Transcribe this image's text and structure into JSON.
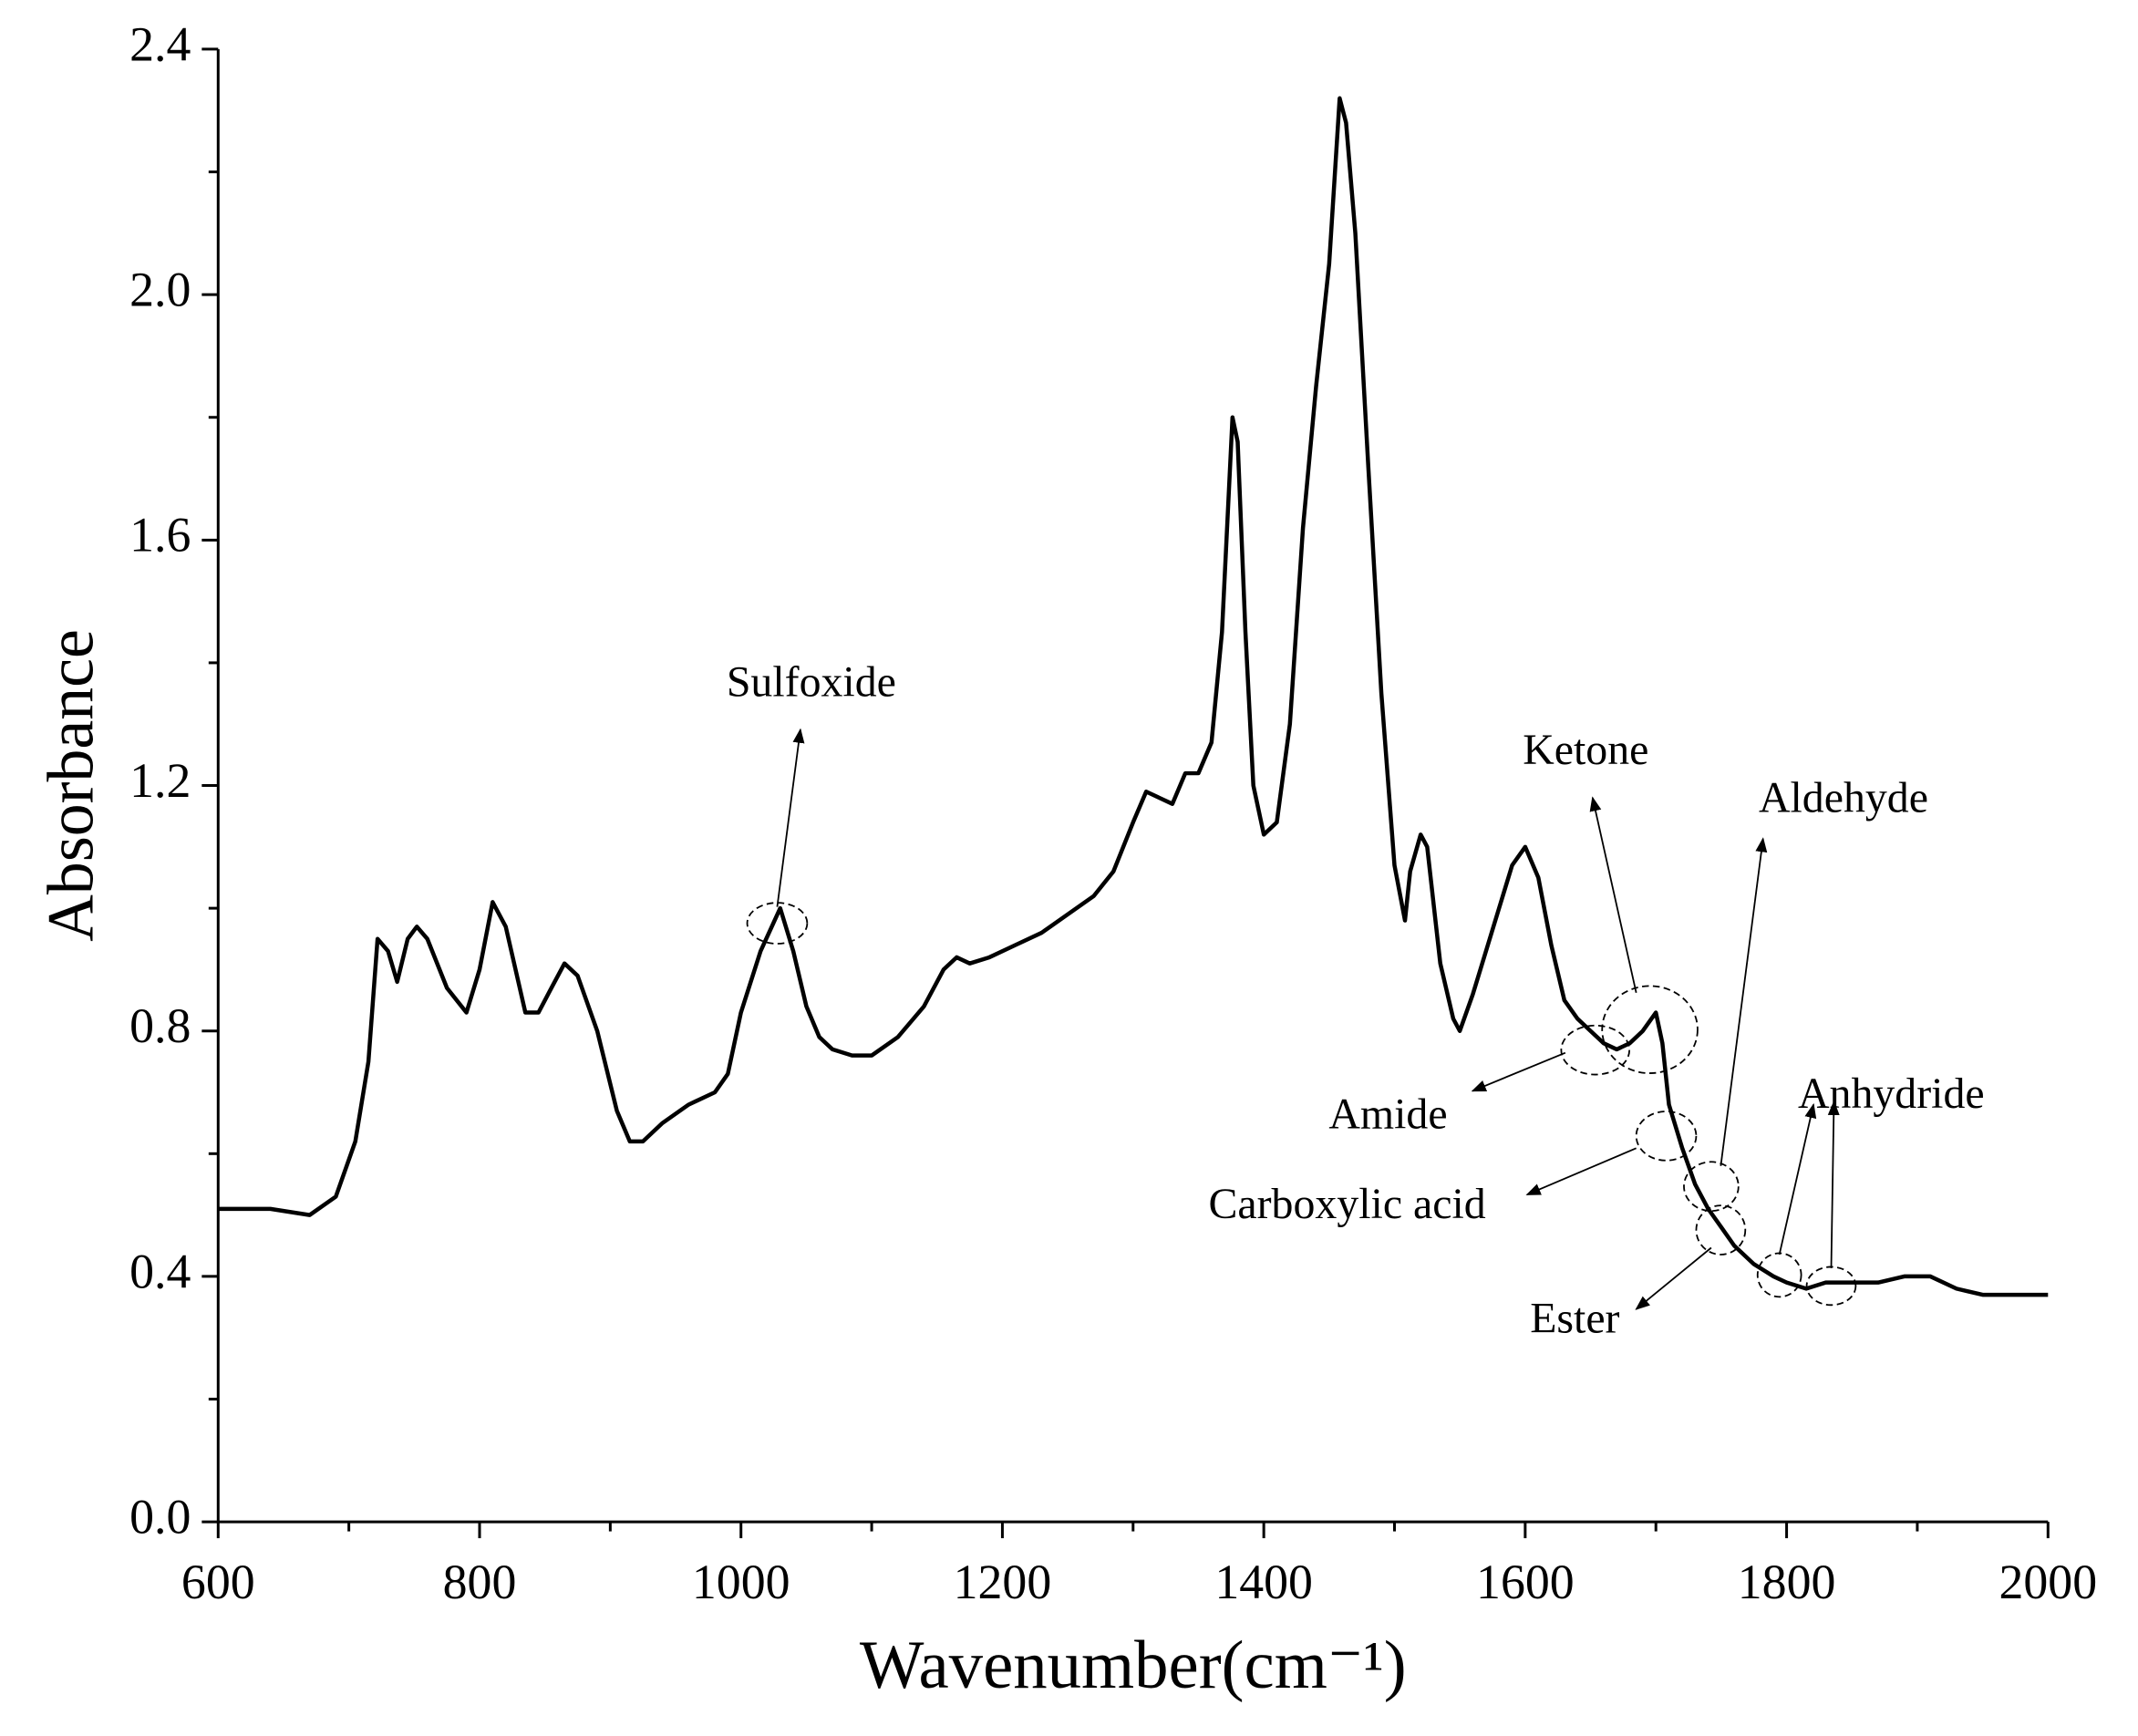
{
  "chart_data": {
    "type": "line",
    "xlabel": "Wavenumber(cm⁻¹)",
    "ylabel": "Absorbance",
    "color": "#000000",
    "x": [
      600,
      640,
      670,
      690,
      705,
      715,
      722,
      730,
      737,
      745,
      752,
      760,
      775,
      790,
      800,
      810,
      820,
      835,
      845,
      855,
      865,
      875,
      890,
      905,
      915,
      925,
      940,
      960,
      980,
      990,
      1000,
      1015,
      1030,
      1040,
      1050,
      1060,
      1070,
      1085,
      1100,
      1120,
      1140,
      1155,
      1165,
      1175,
      1190,
      1210,
      1230,
      1250,
      1270,
      1285,
      1300,
      1310,
      1320,
      1330,
      1340,
      1350,
      1360,
      1368,
      1376,
      1380,
      1386,
      1392,
      1400,
      1410,
      1420,
      1430,
      1440,
      1450,
      1458,
      1463,
      1470,
      1480,
      1490,
      1500,
      1508,
      1512,
      1520,
      1525,
      1535,
      1545,
      1550,
      1560,
      1570,
      1580,
      1590,
      1600,
      1610,
      1620,
      1630,
      1640,
      1650,
      1660,
      1670,
      1680,
      1690,
      1700,
      1705,
      1710,
      1720,
      1730,
      1740,
      1750,
      1760,
      1775,
      1790,
      1800,
      1815,
      1830,
      1850,
      1870,
      1890,
      1910,
      1930,
      1950,
      1970,
      1985,
      2000
    ],
    "values": [
      0.51,
      0.51,
      0.5,
      0.53,
      0.62,
      0.75,
      0.95,
      0.93,
      0.88,
      0.95,
      0.97,
      0.95,
      0.87,
      0.83,
      0.9,
      1.01,
      0.97,
      0.83,
      0.83,
      0.87,
      0.91,
      0.89,
      0.8,
      0.67,
      0.62,
      0.62,
      0.65,
      0.68,
      0.7,
      0.73,
      0.83,
      0.93,
      1.0,
      0.93,
      0.84,
      0.79,
      0.77,
      0.76,
      0.76,
      0.79,
      0.84,
      0.9,
      0.92,
      0.91,
      0.92,
      0.94,
      0.96,
      0.99,
      1.02,
      1.06,
      1.14,
      1.19,
      1.18,
      1.17,
      1.22,
      1.22,
      1.27,
      1.45,
      1.8,
      1.76,
      1.45,
      1.2,
      1.12,
      1.14,
      1.3,
      1.62,
      1.85,
      2.05,
      2.32,
      2.28,
      2.1,
      1.72,
      1.35,
      1.07,
      0.98,
      1.06,
      1.12,
      1.1,
      0.91,
      0.82,
      0.8,
      0.86,
      0.93,
      1.0,
      1.07,
      1.1,
      1.05,
      0.94,
      0.85,
      0.82,
      0.8,
      0.78,
      0.77,
      0.78,
      0.8,
      0.83,
      0.78,
      0.68,
      0.61,
      0.55,
      0.51,
      0.48,
      0.45,
      0.42,
      0.4,
      0.39,
      0.38,
      0.39,
      0.39,
      0.39,
      0.4,
      0.4,
      0.38,
      0.37,
      0.37,
      0.37,
      0.37
    ],
    "xlim": [
      600,
      2000
    ],
    "xticks": [
      600,
      800,
      1000,
      1200,
      1400,
      1600,
      1800,
      2000
    ],
    "xticks_minor": [
      700,
      900,
      1100,
      1300,
      1500,
      1700,
      1900
    ],
    "ylim": [
      0,
      2.4
    ],
    "yticks": [
      {
        "value": 0,
        "label": "0.0"
      },
      0.4,
      0.8,
      1.2,
      1.6,
      {
        "value": 2,
        "label": "2.0"
      },
      2.4
    ],
    "yticks_minor": [
      0.2,
      0.6,
      1.0,
      1.4,
      1.8,
      2.2
    ],
    "annotations": [
      "Sulfoxide",
      "Ketone",
      "Aldehyde",
      "Amide",
      "Carboxylic acid",
      "Ester",
      "Anhydride"
    ]
  }
}
